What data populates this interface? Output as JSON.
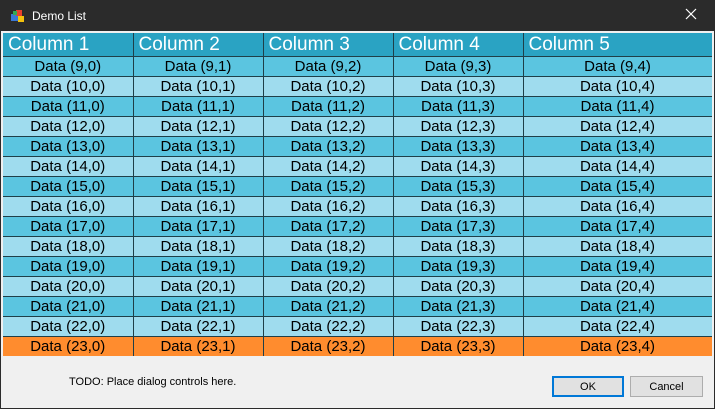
{
  "window": {
    "title": "Demo List",
    "icons": {
      "app": "app-icon",
      "close": "close-icon"
    }
  },
  "list": {
    "columns": [
      "Column 1",
      "Column 2",
      "Column 3",
      "Column 4",
      "Column 5"
    ],
    "rows": [
      [
        "Data (9,0)",
        "Data (9,1)",
        "Data (9,2)",
        "Data (9,3)",
        "Data (9,4)"
      ],
      [
        "Data (10,0)",
        "Data (10,1)",
        "Data (10,2)",
        "Data (10,3)",
        "Data (10,4)"
      ],
      [
        "Data (11,0)",
        "Data (11,1)",
        "Data (11,2)",
        "Data (11,3)",
        "Data (11,4)"
      ],
      [
        "Data (12,0)",
        "Data (12,1)",
        "Data (12,2)",
        "Data (12,3)",
        "Data (12,4)"
      ],
      [
        "Data (13,0)",
        "Data (13,1)",
        "Data (13,2)",
        "Data (13,3)",
        "Data (13,4)"
      ],
      [
        "Data (14,0)",
        "Data (14,1)",
        "Data (14,2)",
        "Data (14,3)",
        "Data (14,4)"
      ],
      [
        "Data (15,0)",
        "Data (15,1)",
        "Data (15,2)",
        "Data (15,3)",
        "Data (15,4)"
      ],
      [
        "Data (16,0)",
        "Data (16,1)",
        "Data (16,2)",
        "Data (16,3)",
        "Data (16,4)"
      ],
      [
        "Data (17,0)",
        "Data (17,1)",
        "Data (17,2)",
        "Data (17,3)",
        "Data (17,4)"
      ],
      [
        "Data (18,0)",
        "Data (18,1)",
        "Data (18,2)",
        "Data (18,3)",
        "Data (18,4)"
      ],
      [
        "Data (19,0)",
        "Data (19,1)",
        "Data (19,2)",
        "Data (19,3)",
        "Data (19,4)"
      ],
      [
        "Data (20,0)",
        "Data (20,1)",
        "Data (20,2)",
        "Data (20,3)",
        "Data (20,4)"
      ],
      [
        "Data (21,0)",
        "Data (21,1)",
        "Data (21,2)",
        "Data (21,3)",
        "Data (21,4)"
      ],
      [
        "Data (22,0)",
        "Data (22,1)",
        "Data (22,2)",
        "Data (22,3)",
        "Data (22,4)"
      ],
      [
        "Data (23,0)",
        "Data (23,1)",
        "Data (23,2)",
        "Data (23,3)",
        "Data (23,4)"
      ]
    ],
    "highlighted_row": 14,
    "colors": {
      "header": "#2aa3c3",
      "row_dark": "#5bc5e0",
      "row_light": "#9fdcee",
      "highlight": "#ff8c2e"
    }
  },
  "footer": {
    "todo_text": "TODO: Place dialog controls here.",
    "ok_label": "OK",
    "cancel_label": "Cancel"
  }
}
